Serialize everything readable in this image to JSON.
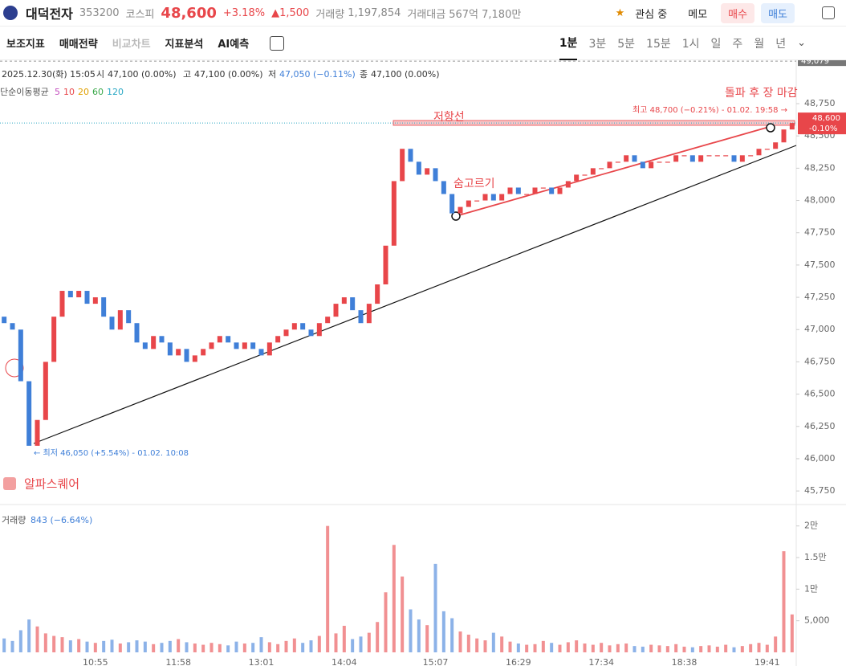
{
  "header": {
    "name": "대덕전자",
    "code": "353200",
    "market": "코스피",
    "price": "48,600",
    "change_pct": "+3.18%",
    "change": "▲1,500",
    "volume_label": "거래량",
    "volume": "1,197,854",
    "amount_label": "거래대금",
    "amount": "567억 7,180만",
    "watch": "관심 중",
    "memo": "메모",
    "buy": "매수",
    "sell": "매도"
  },
  "toolbar": {
    "tools": [
      "보조지표",
      "매매전략",
      "비교차트",
      "지표분석",
      "AI예측"
    ],
    "intervals": [
      "1분",
      "3분",
      "5분",
      "15분",
      "1시",
      "일",
      "주",
      "월",
      "년"
    ]
  },
  "info": {
    "date": "2025.12.30(화) 15:05",
    "open_label": "시",
    "open": "47,100 (0.00%)",
    "high_label": "고",
    "high": "47,100 (0.00%)",
    "low_label": "저",
    "low": "47,050 (−0.11%)",
    "close_label": "종",
    "close": "47,100 (0.00%)",
    "ma_label": "단순이동평균",
    "ma": [
      "5",
      "10",
      "20",
      "60",
      "120"
    ]
  },
  "chart_data": {
    "type": "candlestick",
    "categories": [
      null,
      null,
      null,
      null,
      null,
      null,
      null,
      null,
      null,
      null,
      null,
      "10:55",
      null,
      null,
      null,
      null,
      null,
      null,
      null,
      null,
      null,
      "11:58",
      null,
      null,
      null,
      null,
      null,
      null,
      null,
      null,
      null,
      "13:01",
      null,
      null,
      null,
      null,
      null,
      null,
      null,
      null,
      null,
      "14:04",
      null,
      null,
      null,
      null,
      null,
      null,
      null,
      null,
      null,
      null,
      "15:07",
      null,
      null,
      null,
      null,
      null,
      null,
      null,
      null,
      null,
      "16:29",
      null,
      null,
      null,
      null,
      null,
      null,
      null,
      null,
      null,
      "17:34",
      null,
      null,
      null,
      null,
      null,
      null,
      null,
      null,
      null,
      "18:38",
      null,
      null,
      null,
      null,
      null,
      null,
      null,
      null,
      null,
      "19:41",
      null,
      null,
      null
    ],
    "open": [
      47100,
      47050,
      47000,
      46600,
      46100,
      46300,
      46750,
      47100,
      47300,
      47250,
      47300,
      47200,
      47250,
      47100,
      47000,
      47150,
      47050,
      46900,
      46850,
      46950,
      46900,
      46800,
      46850,
      46750,
      46800,
      46850,
      46900,
      46950,
      46900,
      46850,
      46900,
      46850,
      46800,
      46900,
      46950,
      47000,
      47050,
      47000,
      46950,
      47050,
      47100,
      47200,
      47250,
      47150,
      47050,
      47200,
      47350,
      47650,
      48150,
      48400,
      48300,
      48200,
      48250,
      48150,
      48050,
      47900,
      47950,
      48000,
      48000,
      48050,
      48000,
      48050,
      48100,
      48050,
      48050,
      48100,
      48100,
      48050,
      48100,
      48150,
      48200,
      48200,
      48250,
      48250,
      48300,
      48300,
      48350,
      48300,
      48250,
      48300,
      48300,
      48300,
      48350,
      48350,
      48300,
      48350,
      48350,
      48350,
      48350,
      48300,
      48350,
      48350,
      48400,
      48400,
      48450,
      48550
    ],
    "close": [
      47050,
      47000,
      46600,
      46100,
      46300,
      46750,
      47100,
      47300,
      47250,
      47300,
      47200,
      47250,
      47100,
      47000,
      47150,
      47050,
      46900,
      46850,
      46950,
      46900,
      46800,
      46850,
      46750,
      46800,
      46850,
      46900,
      46950,
      46900,
      46850,
      46900,
      46850,
      46800,
      46900,
      46950,
      47000,
      47050,
      47000,
      46950,
      47050,
      47100,
      47200,
      47250,
      47150,
      47050,
      47200,
      47350,
      47650,
      48150,
      48400,
      48300,
      48200,
      48250,
      48150,
      48050,
      47900,
      47950,
      48000,
      48000,
      48050,
      48000,
      48050,
      48100,
      48050,
      48050,
      48100,
      48100,
      48050,
      48100,
      48150,
      48200,
      48200,
      48250,
      48250,
      48300,
      48300,
      48350,
      48300,
      48250,
      48300,
      48300,
      48300,
      48350,
      48350,
      48300,
      48350,
      48350,
      48350,
      48350,
      48300,
      48350,
      48350,
      48400,
      48400,
      48450,
      48550,
      48600
    ],
    "up_color": "#e8464a",
    "down_color": "#3f7fd8",
    "ylim": [
      45645,
      49055
    ],
    "yticks": [
      {
        "value": 45750,
        "label": "45,750"
      },
      {
        "value": 46000,
        "label": "46,000"
      },
      {
        "value": 46250,
        "label": "46,250"
      },
      {
        "value": 46500,
        "label": "46,500"
      },
      {
        "value": 46750,
        "label": "46,750"
      },
      {
        "value": 47000,
        "label": "47,000"
      },
      {
        "value": 47250,
        "label": "47,250"
      },
      {
        "value": 47500,
        "label": "47,500"
      },
      {
        "value": 47750,
        "label": "47,750"
      },
      {
        "value": 48000,
        "label": "48,000"
      },
      {
        "value": 48250,
        "label": "48,250"
      },
      {
        "value": 48500,
        "label": "48,500"
      },
      {
        "value": 48750,
        "label": "48,750"
      }
    ],
    "top_price": {
      "value": 49079,
      "label": "49,079"
    },
    "current_price": {
      "value": 48600,
      "label": "48,600"
    },
    "current_change": "-0.10%",
    "annotations": {
      "resistance": "저항선",
      "pause": "숨고르기",
      "breakout": "돌파 후 장 마감",
      "high": "최고 48,700 (−0.21%) - 01.02. 19:58 →",
      "low": "← 최저 46,050 (+5.54%) - 01.02. 10:08",
      "brand": "알파스퀘어"
    },
    "volume": {
      "label": "거래량",
      "last": "843 (−6.64%)",
      "values": [
        2200,
        1800,
        3500,
        5200,
        4100,
        3000,
        2600,
        2400,
        1900,
        2100,
        1700,
        1500,
        1800,
        2000,
        1400,
        1600,
        1900,
        1700,
        1300,
        1500,
        1800,
        2100,
        1600,
        1400,
        1200,
        1500,
        1300,
        1100,
        1700,
        1400,
        1500,
        2400,
        1600,
        1300,
        1800,
        2200,
        1500,
        1900,
        2600,
        20000,
        3000,
        4200,
        2100,
        2500,
        3100,
        4800,
        9500,
        17000,
        12000,
        6800,
        5200,
        4300,
        14000,
        6500,
        5400,
        3300,
        2800,
        2200,
        1900,
        3100,
        2500,
        1700,
        1400,
        1200,
        1300,
        1800,
        1500,
        1200,
        1600,
        1900,
        1400,
        1200,
        1500,
        1100,
        1300,
        1400,
        1000,
        900,
        1200,
        1100,
        1000,
        1300,
        900,
        800,
        1000,
        1100,
        900,
        1200,
        800,
        1000,
        1300,
        1500,
        1200,
        2500,
        16000,
        6000
      ],
      "ylim": [
        0,
        22500
      ],
      "yticks": [
        {
          "value": 5000,
          "label": "5,000"
        },
        {
          "value": 10000,
          "label": "1만"
        },
        {
          "value": 15000,
          "label": "1.5만"
        },
        {
          "value": 20000,
          "label": "2만"
        }
      ]
    }
  }
}
